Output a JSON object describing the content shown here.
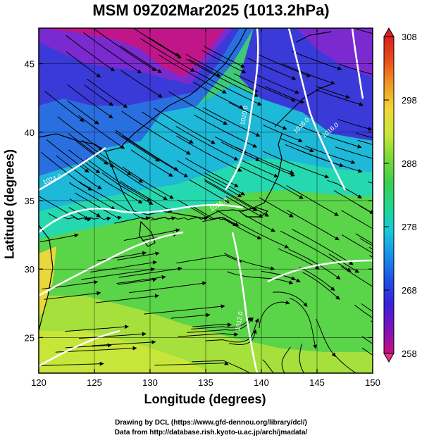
{
  "title": "MSM 09Z02Mar2025 (1013.2hPa)",
  "xlabel": "Longitude (degrees)",
  "ylabel": "Latitude  (degrees)",
  "credits": {
    "line1": "Drawing by DCL (https://www.gfd-dennou.org/library/dcl/)",
    "line2": "Data from http://database.rish.kyoto-u.ac.jp/arch/jmadata/"
  },
  "map": {
    "lon_range": [
      120,
      150
    ],
    "lat_range": [
      22.4,
      47.6
    ],
    "lon_ticks": [
      "120",
      "125",
      "130",
      "135",
      "140",
      "145",
      "150"
    ],
    "lat_ticks": [
      "25",
      "30",
      "35",
      "40",
      "45"
    ],
    "lat_tick_values": [
      25,
      30,
      35,
      40,
      45
    ],
    "lon_tick_values": [
      120,
      125,
      130,
      135,
      140,
      145,
      150
    ],
    "isobar_labels": [
      "1020.0",
      "1016.0",
      "1016.0",
      "1016.0",
      "1024.0",
      "1012.0"
    ],
    "colorbar": {
      "min": 258,
      "max": 308,
      "ticks": [
        "308",
        "298",
        "288",
        "278",
        "268",
        "258"
      ],
      "tick_values": [
        308,
        298,
        288,
        278,
        268,
        258
      ],
      "colors": [
        "#c4117f",
        "#7e12bd",
        "#3a21d9",
        "#1d4fe6",
        "#1a8ee8",
        "#18c8d8",
        "#20d890",
        "#3ad050",
        "#7ad838",
        "#c8e63a",
        "#f0d838",
        "#f09a28",
        "#e85018",
        "#d82020"
      ]
    }
  },
  "chart_data": {
    "type": "heatmap",
    "title": "MSM 09Z02Mar2025 (1013.2hPa)",
    "xlabel": "Longitude (degrees)",
    "ylabel": "Latitude  (degrees)",
    "xlim": [
      120,
      150
    ],
    "ylim": [
      22.4,
      47.6
    ],
    "colorbar_range": [
      258,
      308
    ],
    "colorbar_ticks": [
      258,
      268,
      278,
      288,
      298,
      308
    ],
    "isobar_labels": [
      "1020.0",
      "1016.0",
      "1016.0",
      "1016.0",
      "1024.0",
      "1012.0"
    ]
  }
}
